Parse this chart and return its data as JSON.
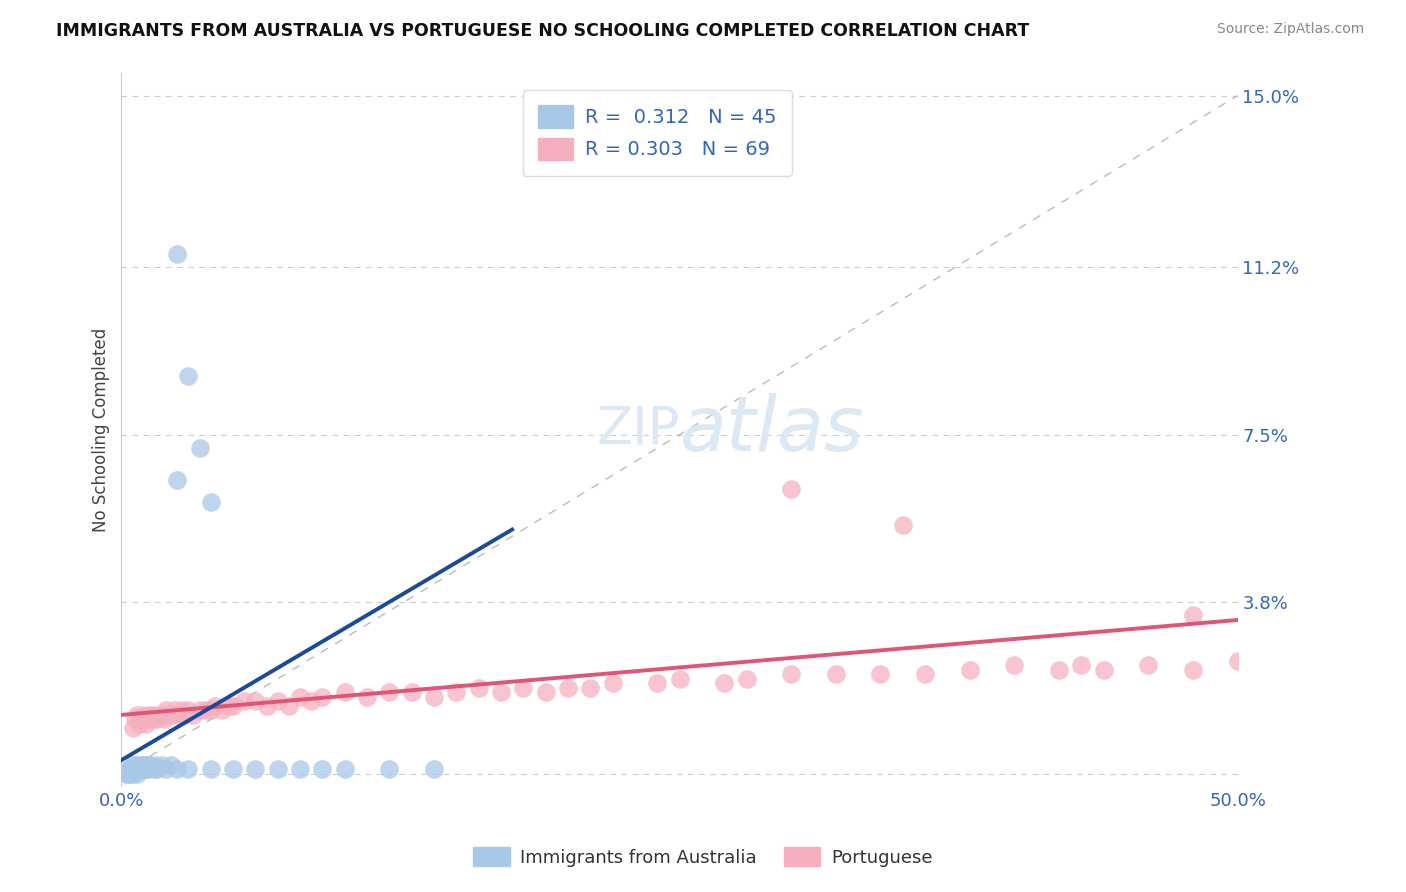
{
  "title": "IMMIGRANTS FROM AUSTRALIA VS PORTUGUESE NO SCHOOLING COMPLETED CORRELATION CHART",
  "source": "Source: ZipAtlas.com",
  "ylabel": "No Schooling Completed",
  "xlim": [
    0.0,
    0.5
  ],
  "ylim": [
    -0.003,
    0.155
  ],
  "ytick_positions": [
    0.0,
    0.038,
    0.075,
    0.112,
    0.15
  ],
  "ytick_labels": [
    "",
    "3.8%",
    "7.5%",
    "11.2%",
    "15.0%"
  ],
  "xtick_positions": [
    0.0,
    0.1,
    0.2,
    0.3,
    0.4,
    0.5
  ],
  "xtick_labels": [
    "0.0%",
    "",
    "",
    "",
    "",
    "50.0%"
  ],
  "legend_line1": "R =  0.312   N = 45",
  "legend_line2": "R = 0.303   N = 69",
  "blue_scatter_color": "#a8c8e8",
  "blue_line_color": "#1a4a99",
  "pink_scatter_color": "#f5b0c0",
  "pink_line_color": "#e05575",
  "label_color": "#3366bb",
  "grid_color": "#cccccc",
  "ref_line_color": "#bbbbbb",
  "title_color": "#111111",
  "source_color": "#888888",
  "ylabel_color": "#444444",
  "watermark_color": "#dde8f5",
  "aus_x": [
    0.002,
    0.003,
    0.003,
    0.004,
    0.004,
    0.005,
    0.005,
    0.005,
    0.006,
    0.006,
    0.007,
    0.007,
    0.008,
    0.008,
    0.009,
    0.009,
    0.01,
    0.01,
    0.01,
    0.011,
    0.012,
    0.012,
    0.013,
    0.015,
    0.015,
    0.016,
    0.018,
    0.02,
    0.022,
    0.025,
    0.03,
    0.04,
    0.05,
    0.06,
    0.07,
    0.08,
    0.09,
    0.1,
    0.12,
    0.14,
    0.025,
    0.03,
    0.035,
    0.025,
    0.04
  ],
  "aus_y": [
    0.0,
    0.001,
    0.0,
    0.001,
    0.0,
    0.001,
    0.002,
    0.0,
    0.001,
    0.002,
    0.001,
    0.0,
    0.002,
    0.001,
    0.002,
    0.001,
    0.002,
    0.001,
    0.002,
    0.001,
    0.002,
    0.001,
    0.002,
    0.001,
    0.002,
    0.001,
    0.002,
    0.001,
    0.002,
    0.001,
    0.001,
    0.001,
    0.001,
    0.001,
    0.001,
    0.001,
    0.001,
    0.001,
    0.001,
    0.001,
    0.115,
    0.088,
    0.072,
    0.065,
    0.06
  ],
  "por_x": [
    0.005,
    0.006,
    0.007,
    0.008,
    0.009,
    0.01,
    0.011,
    0.012,
    0.013,
    0.014,
    0.015,
    0.016,
    0.018,
    0.019,
    0.02,
    0.022,
    0.024,
    0.025,
    0.027,
    0.028,
    0.03,
    0.032,
    0.035,
    0.038,
    0.04,
    0.042,
    0.045,
    0.048,
    0.05,
    0.055,
    0.06,
    0.065,
    0.07,
    0.075,
    0.08,
    0.085,
    0.09,
    0.1,
    0.11,
    0.12,
    0.13,
    0.14,
    0.15,
    0.16,
    0.17,
    0.18,
    0.19,
    0.2,
    0.21,
    0.22,
    0.24,
    0.25,
    0.27,
    0.28,
    0.3,
    0.32,
    0.34,
    0.36,
    0.38,
    0.4,
    0.42,
    0.43,
    0.44,
    0.46,
    0.48,
    0.5,
    0.35,
    0.3,
    0.48
  ],
  "por_y": [
    0.01,
    0.012,
    0.013,
    0.011,
    0.012,
    0.013,
    0.011,
    0.012,
    0.013,
    0.012,
    0.013,
    0.012,
    0.013,
    0.012,
    0.014,
    0.013,
    0.014,
    0.013,
    0.014,
    0.013,
    0.014,
    0.013,
    0.014,
    0.014,
    0.014,
    0.015,
    0.014,
    0.015,
    0.015,
    0.016,
    0.016,
    0.015,
    0.016,
    0.015,
    0.017,
    0.016,
    0.017,
    0.018,
    0.017,
    0.018,
    0.018,
    0.017,
    0.018,
    0.019,
    0.018,
    0.019,
    0.018,
    0.019,
    0.019,
    0.02,
    0.02,
    0.021,
    0.02,
    0.021,
    0.022,
    0.022,
    0.022,
    0.022,
    0.023,
    0.024,
    0.023,
    0.024,
    0.023,
    0.024,
    0.023,
    0.025,
    0.055,
    0.063,
    0.035
  ],
  "aus_trend_x": [
    0.0,
    0.175
  ],
  "aus_trend_y": [
    0.003,
    0.054
  ],
  "por_trend_x": [
    0.0,
    0.5
  ],
  "por_trend_y": [
    0.013,
    0.034
  ]
}
